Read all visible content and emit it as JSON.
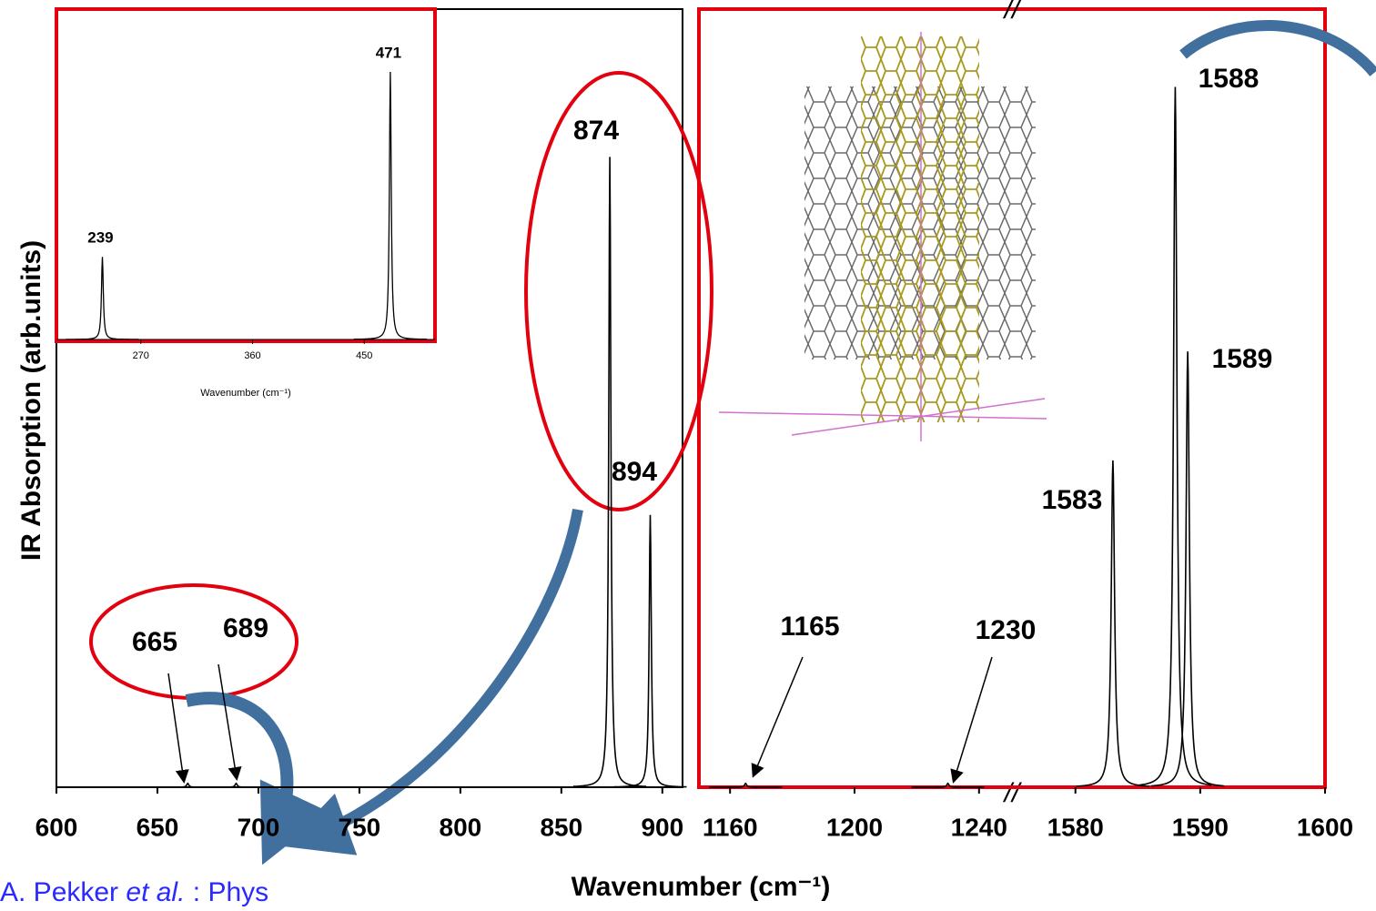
{
  "chart_data": [
    {
      "type": "line",
      "x_label": "Wavenumber (cm⁻¹)",
      "y_label": "IR Absorption (arb.units)",
      "ylim": [
        0,
        100
      ],
      "color": "#000000",
      "panels": [
        {
          "xlim": [
            600,
            910
          ],
          "xticks": [
            600,
            650,
            700,
            750,
            800,
            850,
            900
          ]
        },
        {
          "xlim": [
            1150,
            1250
          ],
          "xticks": [
            1160,
            1200,
            1240
          ]
        },
        {
          "xlim": [
            1575.5,
            1600
          ],
          "xticks": [
            1580,
            1590,
            1600
          ]
        }
      ],
      "peaks": {
        "x": [
          665,
          689,
          874,
          894,
          1165,
          1230,
          1583,
          1588,
          1589
        ],
        "values": [
          0.5,
          0.5,
          81,
          35,
          0.5,
          0.5,
          42,
          90,
          56
        ]
      }
    },
    {
      "type": "line",
      "x_label": "Wavenumber (cm⁻¹)",
      "xlim": [
        202,
        507
      ],
      "xticks": [
        270,
        360,
        450
      ],
      "ylim": [
        0,
        100
      ],
      "color": "#000000",
      "peaks": {
        "x": [
          239,
          471
        ],
        "values": [
          25,
          81
        ]
      }
    }
  ],
  "citation": [
    "A. Pekker ",
    "et al.",
    " : Phys"
  ]
}
